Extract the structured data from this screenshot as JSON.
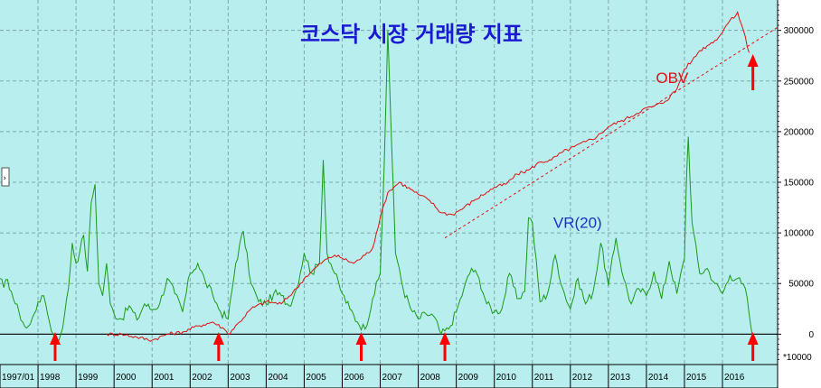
{
  "chart_data": {
    "type": "line",
    "title": "코스닥 시장 거래량 지표",
    "x_unit_note": "",
    "y_scale_label": "*10000",
    "ylim": [
      -30000,
      330000
    ],
    "xlim": [
      1997.0,
      2017.45
    ],
    "y_ticks": [
      0,
      50000,
      100000,
      150000,
      200000,
      250000,
      300000
    ],
    "y_tick_labels": [
      "0",
      "50000",
      "100000",
      "150000",
      "200000",
      "250000",
      "300000"
    ],
    "x_ticks": [
      {
        "x": 1997.0,
        "label": "1997/01"
      },
      {
        "x": 1998.0,
        "label": "1998"
      },
      {
        "x": 1999.0,
        "label": "1999"
      },
      {
        "x": 2000.0,
        "label": "2000"
      },
      {
        "x": 2001.0,
        "label": "2001"
      },
      {
        "x": 2002.0,
        "label": "2002"
      },
      {
        "x": 2003.0,
        "label": "2003"
      },
      {
        "x": 2004.0,
        "label": "2004"
      },
      {
        "x": 2005.0,
        "label": "2005"
      },
      {
        "x": 2006.0,
        "label": "2006"
      },
      {
        "x": 2007.0,
        "label": "2007"
      },
      {
        "x": 2008.0,
        "label": "2008"
      },
      {
        "x": 2009.0,
        "label": "2009"
      },
      {
        "x": 2010.0,
        "label": "2010"
      },
      {
        "x": 2011.0,
        "label": "2011"
      },
      {
        "x": 2012.0,
        "label": "2012"
      },
      {
        "x": 2013.0,
        "label": "2013"
      },
      {
        "x": 2014.0,
        "label": "2014"
      },
      {
        "x": 2015.0,
        "label": "2015"
      },
      {
        "x": 2016.0,
        "label": "2016"
      }
    ],
    "grid": true,
    "series": [
      {
        "name": "VR(20)",
        "color": "#1a9a1a",
        "x": [
          1997.0,
          1997.1,
          1997.2,
          1997.3,
          1997.4,
          1997.5,
          1997.6,
          1997.7,
          1997.8,
          1997.9,
          1998.0,
          1998.1,
          1998.2,
          1998.3,
          1998.4,
          1998.5,
          1998.6,
          1998.7,
          1998.8,
          1998.9,
          1999.0,
          1999.1,
          1999.2,
          1999.3,
          1999.4,
          1999.5,
          1999.6,
          1999.7,
          1999.8,
          1999.9,
          2000.0,
          2000.2,
          2000.4,
          2000.6,
          2000.8,
          2001.0,
          2001.2,
          2001.4,
          2001.6,
          2001.8,
          2002.0,
          2002.2,
          2002.4,
          2002.6,
          2002.8,
          2003.0,
          2003.2,
          2003.4,
          2003.6,
          2003.8,
          2004.0,
          2004.2,
          2004.4,
          2004.6,
          2004.8,
          2005.0,
          2005.2,
          2005.4,
          2005.5,
          2005.6,
          2005.8,
          2006.0,
          2006.2,
          2006.4,
          2006.6,
          2006.8,
          2007.0,
          2007.1,
          2007.2,
          2007.3,
          2007.4,
          2007.5,
          2007.6,
          2007.8,
          2008.0,
          2008.2,
          2008.4,
          2008.6,
          2008.8,
          2009.0,
          2009.2,
          2009.4,
          2009.6,
          2009.8,
          2010.0,
          2010.2,
          2010.4,
          2010.6,
          2010.8,
          2010.9,
          2011.0,
          2011.2,
          2011.4,
          2011.6,
          2011.8,
          2012.0,
          2012.2,
          2012.4,
          2012.6,
          2012.8,
          2013.0,
          2013.2,
          2013.4,
          2013.6,
          2013.8,
          2014.0,
          2014.2,
          2014.4,
          2014.6,
          2014.8,
          2015.0,
          2015.05,
          2015.1,
          2015.2,
          2015.4,
          2015.6,
          2015.8,
          2016.0,
          2016.2,
          2016.4,
          2016.5,
          2016.6,
          2016.7,
          2016.8
        ],
        "values": [
          55000,
          46000,
          54000,
          42000,
          30000,
          22000,
          12000,
          6000,
          10000,
          20000,
          32000,
          38000,
          30000,
          12000,
          0,
          -8000,
          0,
          20000,
          45000,
          90000,
          70000,
          82000,
          98000,
          62000,
          130000,
          148000,
          50000,
          38000,
          70000,
          30000,
          20000,
          15000,
          28000,
          14000,
          30000,
          24000,
          30000,
          55000,
          40000,
          22000,
          60000,
          70000,
          52000,
          38000,
          22000,
          15000,
          70000,
          102000,
          50000,
          32000,
          30000,
          40000,
          38000,
          28000,
          45000,
          80000,
          60000,
          70000,
          172000,
          80000,
          60000,
          40000,
          25000,
          12000,
          5000,
          35000,
          60000,
          160000,
          300000,
          185000,
          80000,
          65000,
          45000,
          25000,
          15000,
          20000,
          18000,
          0,
          5000,
          22000,
          45000,
          65000,
          55000,
          30000,
          22000,
          25000,
          60000,
          35000,
          42000,
          115000,
          110000,
          32000,
          40000,
          78000,
          45000,
          25000,
          55000,
          30000,
          42000,
          90000,
          48000,
          95000,
          55000,
          30000,
          45000,
          38000,
          62000,
          35000,
          72000,
          40000,
          75000,
          150000,
          195000,
          110000,
          60000,
          65000,
          50000,
          40000,
          58000,
          55000,
          50000,
          45000,
          20000,
          -5000
        ]
      },
      {
        "name": "OBV",
        "color": "#e01010",
        "x": [
          1999.8,
          2000.2,
          2000.6,
          2001.0,
          2001.4,
          2001.8,
          2002.2,
          2002.6,
          2002.9,
          2003.0,
          2003.3,
          2003.6,
          2004.0,
          2004.4,
          2004.8,
          2005.0,
          2005.2,
          2005.5,
          2005.8,
          2006.0,
          2006.3,
          2006.6,
          2006.8,
          2007.0,
          2007.2,
          2007.5,
          2007.8,
          2008.0,
          2008.3,
          2008.6,
          2008.9,
          2009.2,
          2009.5,
          2009.8,
          2010.0,
          2010.3,
          2010.6,
          2010.9,
          2011.2,
          2011.5,
          2011.8,
          2012.1,
          2012.4,
          2012.7,
          2013.0,
          2013.3,
          2013.6,
          2013.9,
          2014.2,
          2014.5,
          2014.8,
          2015.0,
          2015.2,
          2015.4,
          2015.6,
          2015.8,
          2016.0,
          2016.1,
          2016.2,
          2016.3,
          2016.4,
          2016.55,
          2016.7
        ],
        "values": [
          0,
          0,
          -3000,
          -6000,
          0,
          2000,
          8000,
          12000,
          5000,
          0,
          12000,
          25000,
          32000,
          30000,
          45000,
          55000,
          62000,
          72000,
          78000,
          75000,
          70000,
          78000,
          85000,
          115000,
          140000,
          150000,
          143000,
          138000,
          132000,
          120000,
          118000,
          125000,
          133000,
          140000,
          145000,
          148000,
          158000,
          162000,
          170000,
          172000,
          180000,
          185000,
          190000,
          195000,
          205000,
          210000,
          215000,
          222000,
          225000,
          230000,
          242000,
          262000,
          270000,
          280000,
          285000,
          290000,
          298000,
          305000,
          310000,
          312000,
          318000,
          300000,
          278000
        ]
      }
    ],
    "trendline": {
      "x": [
        2008.7,
        2017.45
      ],
      "values": [
        95000,
        303000
      ],
      "color": "#e01010",
      "style": "dashed"
    },
    "annotations": [
      {
        "text": "OBV",
        "x": 2014.25,
        "y": 248000,
        "color": "#e01010"
      },
      {
        "text": "VR(20)",
        "x": 2011.55,
        "y": 105000,
        "color": "#1a30c8"
      }
    ],
    "arrows_at_x": [
      1998.45,
      2002.75,
      2006.5,
      2008.7,
      2016.8
    ]
  }
}
